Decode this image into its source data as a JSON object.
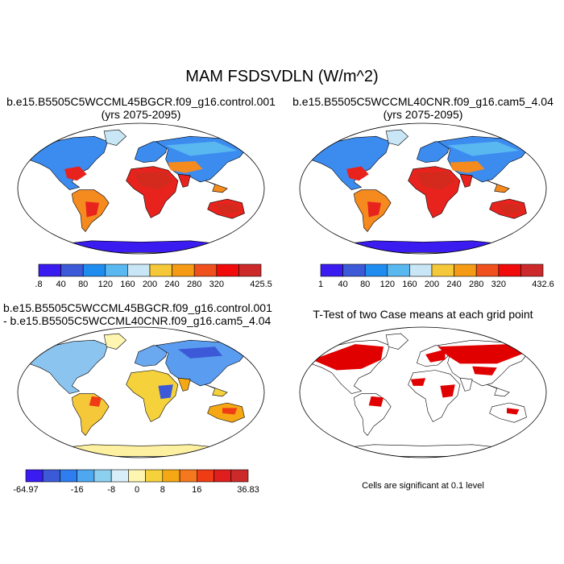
{
  "title": "MAM FSDSVDLN (W/m^2)",
  "panels": [
    {
      "title_line1": "b.e15.B5505C5WCCML45BGCR.f09_g16.control.001",
      "title_line2": "(yrs 2075-2095)",
      "colorbar": {
        "labels": [
          ".8",
          "40",
          "80",
          "120",
          "160",
          "200",
          "240",
          "280",
          "320",
          "425.5"
        ],
        "colors": [
          "#3a1cf0",
          "#3c5ad8",
          "#1f8cf0",
          "#5ab8f0",
          "#c8e6f5",
          "#f5c83a",
          "#f59a14",
          "#f0501e",
          "#f00a0a",
          "#cc2a2a"
        ]
      }
    },
    {
      "title_line1": "b.e15.B5505C5WCCML40CNR.f09_g16.cam5_4.04",
      "title_line2": "(yrs 2075-2095)",
      "colorbar": {
        "labels": [
          "1",
          "40",
          "80",
          "120",
          "160",
          "200",
          "240",
          "280",
          "320",
          "432.6"
        ],
        "colors": [
          "#3a1cf0",
          "#3c5ad8",
          "#1f8cf0",
          "#5ab8f0",
          "#c8e6f5",
          "#f5c83a",
          "#f59a14",
          "#f0501e",
          "#f00a0a",
          "#cc2a2a"
        ]
      }
    },
    {
      "title_line1": "b.e15.B5505C5WCCML45BGCR.f09_g16.control.001",
      "title_line2": "- b.e15.B5505C5WCCML40CNR.f09_g16.cam5_4.04",
      "colorbar": {
        "labels": [
          "-64.97",
          "-16",
          "-8",
          "0",
          "8",
          "16",
          "36.83"
        ],
        "colors": [
          "#3a1cf0",
          "#3c5ad8",
          "#2e7ef0",
          "#4ea8f0",
          "#8cd0f0",
          "#d8eef8",
          "#fdf5b0",
          "#f5d23c",
          "#f5a814",
          "#f5781e",
          "#f03c14",
          "#e01e1e",
          "#cc2a2a"
        ]
      }
    },
    {
      "title_line1": "T-Test of two Case means at each grid point",
      "note": "Cells are significant at 0.1 level",
      "significance_color": "#e00000"
    }
  ],
  "map_colors": {
    "warm": "#e8231e",
    "hot": "#d42a1e",
    "orange": "#f58a1e",
    "yellow": "#f5c83a",
    "light": "#c8e6f5",
    "mid_blue": "#3c8cf0",
    "deep_blue": "#3a1cf0"
  }
}
